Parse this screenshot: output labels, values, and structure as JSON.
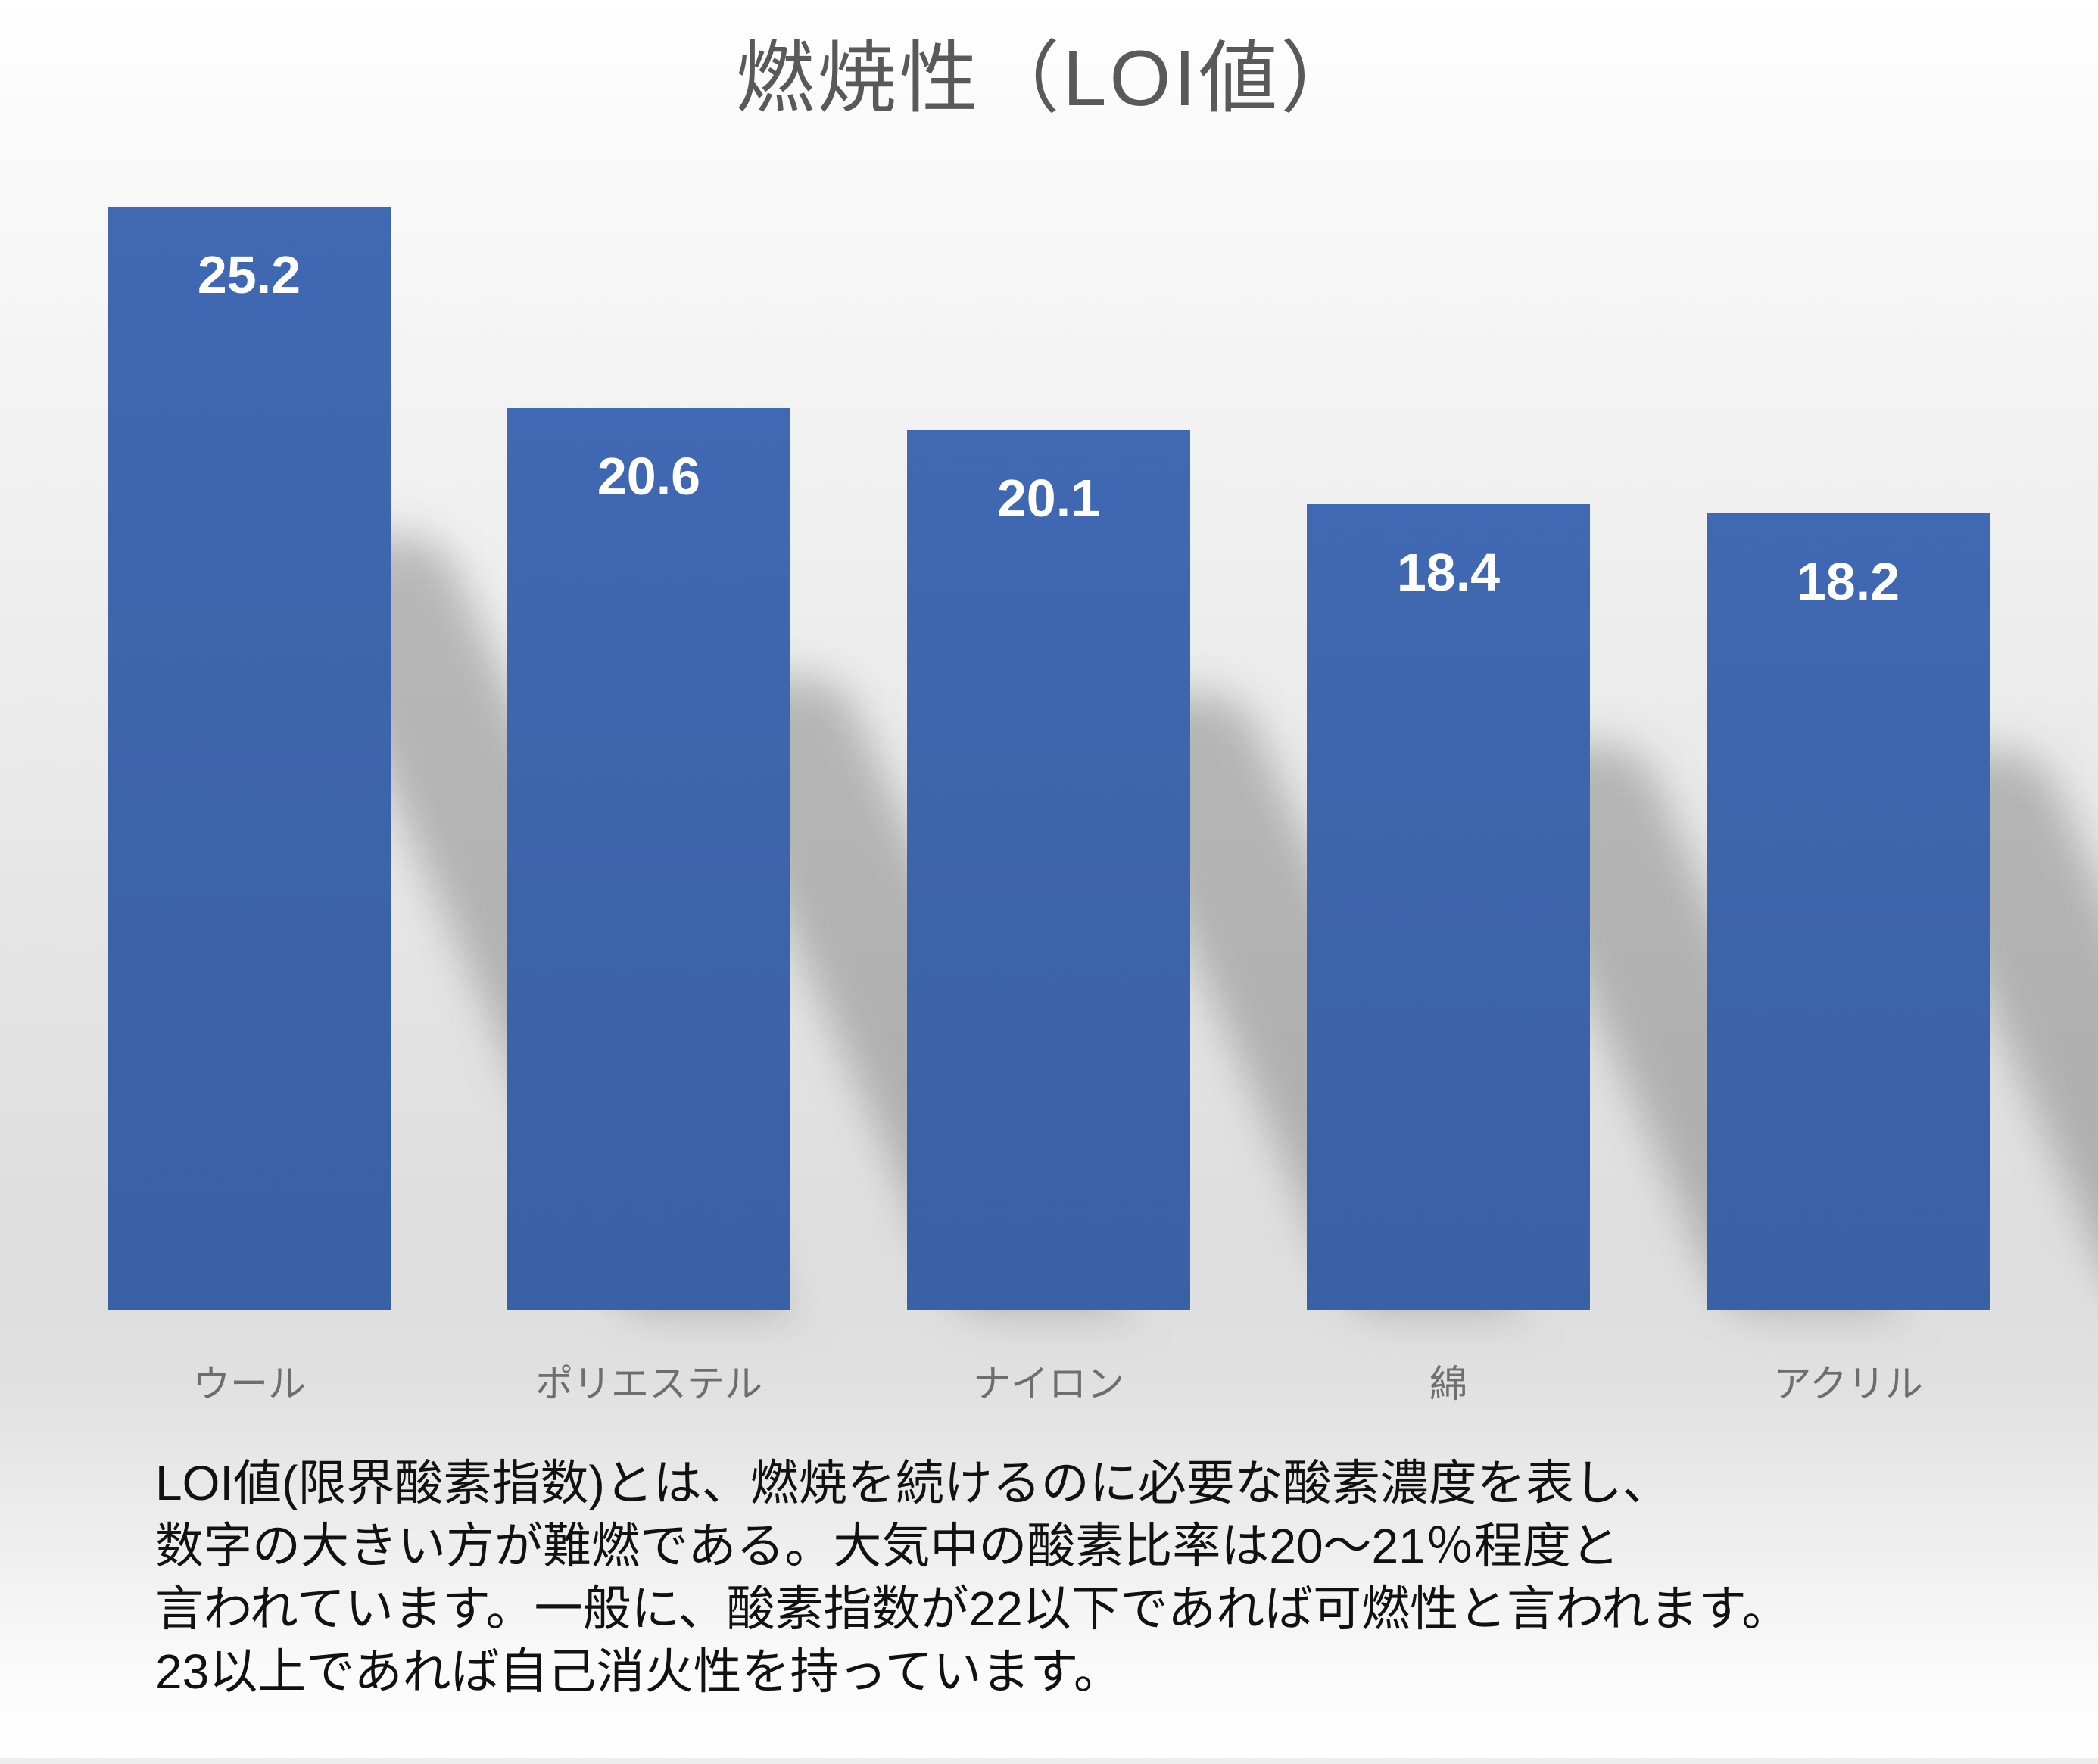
{
  "page_title": "燃焼性（LOI値）",
  "chart_data": {
    "type": "bar",
    "title": "燃焼性（LOI値）",
    "categories": [
      "ウール",
      "ポリエステル",
      "ナイロン",
      "綿",
      "アクリル"
    ],
    "values": [
      25.2,
      20.6,
      20.1,
      18.4,
      18.2
    ],
    "data_labels": [
      "25.2",
      "20.6",
      "20.1",
      "18.4",
      "18.2"
    ],
    "ylim": [
      0,
      26
    ],
    "grid": false,
    "legend": false,
    "axes_visible": false,
    "data_label_position": "inside-top",
    "bar_color": "#3d65ac",
    "data_label_color": "#ffffff",
    "category_label_color": "#6e6e6e",
    "title_color": "#595959",
    "shadow": "perspective-diagonal-lower-right"
  },
  "caption": {
    "text_color": "#111111",
    "lines": [
      "LOI値(限界酸素指数)とは、燃焼を続けるのに必要な酸素濃度を表し、",
      "数字の大きい方が難燃である。大気中の酸素比率は20〜21％程度と",
      "言われています。一般に、酸素指数が22以下であれば可燃性と言われます。",
      "23以上であれば自己消火性を持っています。"
    ]
  }
}
